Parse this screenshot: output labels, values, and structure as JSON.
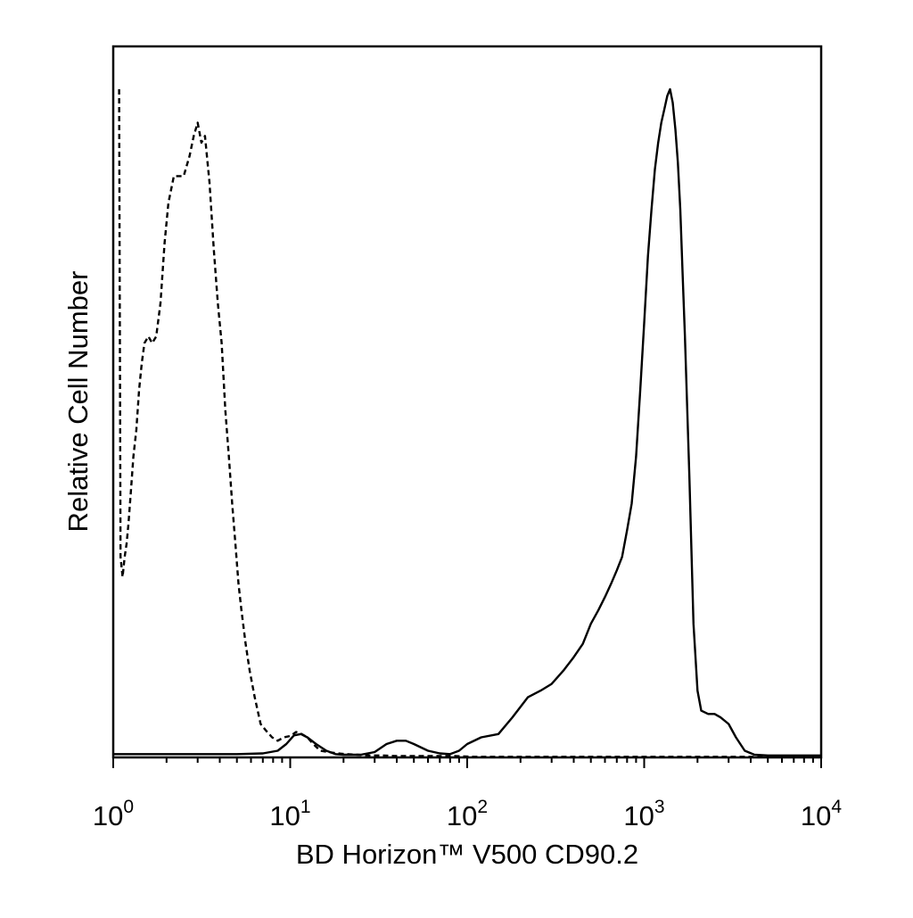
{
  "chart_data": {
    "type": "line",
    "title": "",
    "xlabel": "BD Horizon™ V500 CD90.2",
    "ylabel": "Relative Cell Number",
    "x_scale": "log",
    "xlim": [
      1,
      10000
    ],
    "ylim": [
      0,
      100
    ],
    "grid": false,
    "x_ticks": [
      {
        "base": "10",
        "exp": "0",
        "value": 1
      },
      {
        "base": "10",
        "exp": "1",
        "value": 10
      },
      {
        "base": "10",
        "exp": "2",
        "value": 100
      },
      {
        "base": "10",
        "exp": "3",
        "value": 1000
      },
      {
        "base": "10",
        "exp": "4",
        "value": 10000
      }
    ],
    "series": [
      {
        "style": "dashed",
        "x": [
          1.08,
          1.1,
          1.13,
          1.16,
          1.19,
          1.22,
          1.26,
          1.3,
          1.35,
          1.4,
          1.45,
          1.5,
          1.58,
          1.66,
          1.75,
          1.85,
          1.95,
          2.05,
          2.2,
          2.35,
          2.5,
          2.7,
          2.85,
          3.0,
          3.15,
          3.3,
          3.5,
          3.7,
          3.9,
          4.1,
          4.3,
          4.5,
          4.7,
          4.9,
          5.1,
          5.3,
          5.6,
          5.9,
          6.3,
          6.8,
          7.3,
          7.9,
          8.5,
          9.2,
          10.0,
          10.8,
          11.6,
          12.5,
          13.5,
          14.8,
          16.5,
          18.5,
          21.0,
          24.0,
          28.0,
          33.0,
          40.0,
          50.0,
          65.0,
          85.0,
          110.0,
          150.0,
          200.0,
          300.0,
          500.0,
          800.0,
          1200.0,
          2000.0,
          3000.0,
          4500.0,
          7000.0,
          10000.0
        ],
        "y": [
          100,
          30,
          27,
          30,
          32,
          35,
          40,
          45,
          49,
          55,
          59,
          62,
          63,
          62,
          63,
          68,
          77,
          83,
          87,
          87,
          87,
          90,
          93,
          95,
          92,
          93,
          86,
          76,
          68,
          62,
          52,
          45,
          38,
          32,
          26,
          22,
          17,
          13,
          9,
          5,
          4,
          3,
          2.5,
          3,
          3.2,
          3.8,
          3.5,
          3,
          2,
          1,
          0.8,
          0.6,
          0.5,
          0.4,
          0.3,
          0.3,
          0.2,
          0.2,
          0.2,
          0.2,
          0.1,
          0.1,
          0.1,
          0.1,
          0.1,
          0.1,
          0.1,
          0.1,
          0.1,
          0.1,
          0.1,
          0.1
        ]
      },
      {
        "style": "solid",
        "x": [
          1.0,
          5.0,
          7.0,
          8.5,
          9.5,
          10.5,
          11.5,
          12.5,
          14.0,
          16.0,
          18.0,
          20.0,
          25.0,
          30.0,
          35.0,
          40.0,
          45.0,
          50.0,
          60.0,
          70.0,
          80.0,
          90.0,
          100.0,
          120.0,
          150.0,
          180.0,
          220.0,
          260.0,
          300.0,
          350.0,
          400.0,
          450.0,
          500.0,
          550.0,
          600.0,
          650.0,
          700.0,
          750.0,
          800.0,
          850.0,
          900.0,
          950.0,
          1000.0,
          1050.0,
          1100.0,
          1150.0,
          1200.0,
          1250.0,
          1300.0,
          1350.0,
          1400.0,
          1450.0,
          1500.0,
          1550.0,
          1600.0,
          1650.0,
          1700.0,
          1800.0,
          1900.0,
          2000.0,
          2100.0,
          2300.0,
          2500.0,
          2700.0,
          3000.0,
          3300.0,
          3700.0,
          4200.0,
          5000.0,
          10000.0
        ],
        "y": [
          0.5,
          0.5,
          0.6,
          1,
          2,
          3.3,
          3.5,
          3,
          2,
          1,
          0.5,
          0.4,
          0.4,
          0.8,
          2,
          2.5,
          2.5,
          2,
          1,
          0.6,
          0.5,
          1,
          2,
          3,
          3.5,
          6,
          9,
          10,
          11,
          13,
          15,
          17,
          20,
          22,
          24,
          26,
          28,
          30,
          34,
          38,
          45,
          55,
          65,
          75,
          82,
          88,
          92,
          95,
          97,
          99,
          100,
          98,
          94,
          89,
          82,
          72,
          63,
          42,
          20,
          10,
          7,
          6.5,
          6.5,
          6,
          5,
          3,
          1,
          0.4,
          0.3,
          0.3
        ]
      }
    ]
  }
}
